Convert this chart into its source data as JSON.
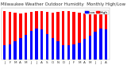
{
  "title": "Milwaukee Weather Outdoor Humidity",
  "subtitle": "Monthly High/Low",
  "months": [
    "J",
    "F",
    "M",
    "A",
    "M",
    "J",
    "J",
    "A",
    "S",
    "O",
    "N",
    "D",
    "J",
    "F",
    "M",
    "A",
    "M",
    "J",
    "J",
    "A"
  ],
  "highs": [
    95,
    93,
    92,
    90,
    91,
    93,
    95,
    95,
    93,
    92,
    93,
    95,
    95,
    93,
    91,
    90,
    91,
    93,
    95,
    95
  ],
  "lows": [
    28,
    30,
    35,
    42,
    48,
    55,
    60,
    58,
    50,
    42,
    35,
    28,
    28,
    30,
    33,
    40,
    47,
    54,
    60,
    58
  ],
  "high_color": "#ff0000",
  "low_color": "#0000ff",
  "bg_color": "#ffffff",
  "ylim": [
    0,
    100
  ],
  "title_fontsize": 4.0,
  "tick_fontsize": 3.0,
  "legend_fontsize": 3.2
}
